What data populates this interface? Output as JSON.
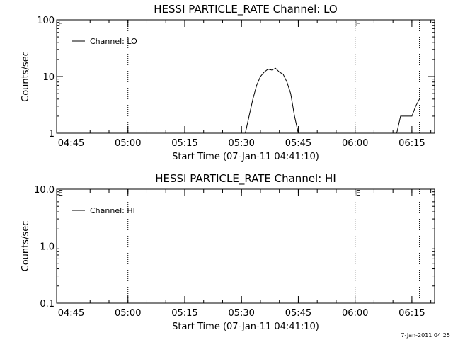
{
  "chart_data": [
    {
      "type": "line",
      "title": "HESSI PARTICLE_RATE Channel: LO",
      "xlabel": "Start Time (07-Jan-11 04:41:10)",
      "ylabel": "Counts/sec",
      "x_tick_labels": [
        "04:45",
        "05:00",
        "05:15",
        "05:30",
        "05:45",
        "06:00",
        "06:15"
      ],
      "y_tick_labels": [
        "1",
        "10",
        "100"
      ],
      "ylim": [
        1,
        100
      ],
      "yscale": "log",
      "legend": {
        "label": "Channel: LO",
        "placement": "top-left"
      },
      "markers": [
        {
          "time": "05:00",
          "label": ""
        },
        {
          "time": "06:00",
          "label": "E"
        },
        {
          "time": "06:17",
          "label": ""
        }
      ],
      "corner_label": "E",
      "series": [
        {
          "name": "Channel: LO",
          "points": [
            [
              "05:31",
              1.0
            ],
            [
              "05:32",
              2.0
            ],
            [
              "05:33",
              4.0
            ],
            [
              "05:34",
              7.0
            ],
            [
              "05:35",
              10.0
            ],
            [
              "05:36",
              12.0
            ],
            [
              "05:37",
              13.5
            ],
            [
              "05:38",
              13.0
            ],
            [
              "05:39",
              14.0
            ],
            [
              "05:40",
              12.0
            ],
            [
              "05:41",
              11.0
            ],
            [
              "05:42",
              8.0
            ],
            [
              "05:43",
              5.0
            ],
            [
              "05:44",
              2.0
            ],
            [
              "05:45",
              1.0
            ]
          ]
        },
        {
          "name": "Channel: LO",
          "points": [
            [
              "06:11",
              1.0
            ],
            [
              "06:12",
              2.0
            ],
            [
              "06:13",
              2.0
            ],
            [
              "06:14",
              2.0
            ],
            [
              "06:15",
              2.0
            ],
            [
              "06:16",
              3.0
            ],
            [
              "06:17",
              4.0
            ]
          ]
        }
      ]
    },
    {
      "type": "line",
      "title": "HESSI PARTICLE_RATE Channel: HI",
      "xlabel": "Start Time (07-Jan-11 04:41:10)",
      "ylabel": "Counts/sec",
      "x_tick_labels": [
        "04:45",
        "05:00",
        "05:15",
        "05:30",
        "05:45",
        "06:00",
        "06:15"
      ],
      "y_tick_labels": [
        "0.1",
        "1.0",
        "10.0"
      ],
      "ylim": [
        0.1,
        10
      ],
      "yscale": "log",
      "legend": {
        "label": "Channel: HI",
        "placement": "top-left"
      },
      "markers": [
        {
          "time": "05:00",
          "label": ""
        },
        {
          "time": "06:00",
          "label": "E"
        },
        {
          "time": "06:17",
          "label": ""
        }
      ],
      "corner_label": "E",
      "series": [
        {
          "name": "Channel: HI",
          "points": []
        }
      ]
    }
  ],
  "footer": {
    "timestamp": "7-Jan-2011 04:25"
  }
}
